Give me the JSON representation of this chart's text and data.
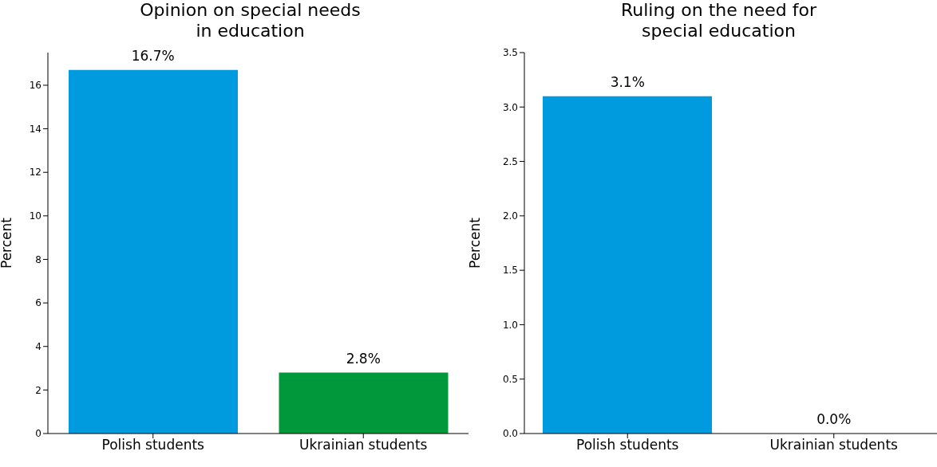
{
  "chart_data": [
    {
      "type": "bar",
      "title": "Opinion on special needs\nin education",
      "ylabel": "Percent",
      "categories": [
        "Polish students",
        "Ukrainian students"
      ],
      "values": [
        16.7,
        2.8
      ],
      "colors": [
        "#009ade",
        "#00983a"
      ],
      "value_labels": [
        "16.7%",
        "2.8%"
      ],
      "ylim": [
        0,
        17.5
      ],
      "yticks": [
        0,
        2,
        4,
        6,
        8,
        10,
        12,
        14,
        16
      ],
      "grid": false,
      "legend": false
    },
    {
      "type": "bar",
      "title": "Ruling on the need for\nspecial education",
      "ylabel": "Percent",
      "categories": [
        "Polish students",
        "Ukrainian students"
      ],
      "values": [
        3.1,
        0.0
      ],
      "colors": [
        "#009ade",
        "#00983a"
      ],
      "value_labels": [
        "3.1%",
        "0.0%"
      ],
      "ylim": [
        0,
        3.5
      ],
      "yticks": [
        {
          "value": 0,
          "label": "0.0"
        },
        {
          "value": 0.5,
          "label": "0.5"
        },
        {
          "value": 1,
          "label": "1.0"
        },
        {
          "value": 1.5,
          "label": "1.5"
        },
        {
          "value": 2,
          "label": "2.0"
        },
        {
          "value": 2.5,
          "label": "2.5"
        },
        {
          "value": 3,
          "label": "3.0"
        },
        {
          "value": 3.5,
          "label": "3.5"
        }
      ],
      "grid": false,
      "legend": false
    }
  ]
}
